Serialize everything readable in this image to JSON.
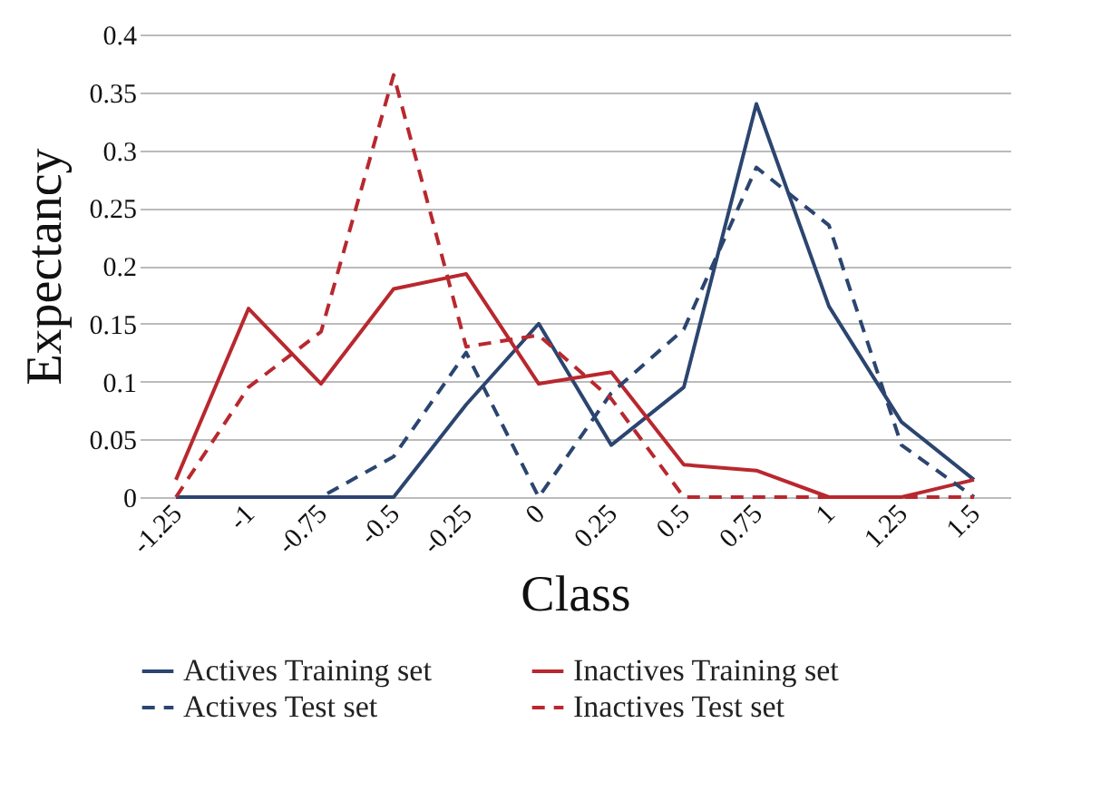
{
  "chart_data": {
    "type": "line",
    "xlabel": "Class",
    "ylabel": "Expectancy",
    "categories": [
      "-1.25",
      "-1",
      "-0.75",
      "-0.5",
      "-0.25",
      "0",
      "0.25",
      "0.5",
      "0.75",
      "1",
      "1.25",
      "1.5"
    ],
    "ylim": [
      0,
      0.4
    ],
    "yticks": [
      0,
      0.05,
      0.1,
      0.15,
      0.2,
      0.25,
      0.3,
      0.35,
      0.4
    ],
    "grid": "y",
    "legend": "bottom",
    "marker": "none",
    "series": [
      {
        "name": "Actives Training set",
        "color": "#2b4570",
        "line_style": "solid",
        "values": [
          0,
          0,
          0,
          0,
          0.08,
          0.15,
          0.045,
          0.095,
          0.34,
          0.165,
          0.065,
          0.015
        ]
      },
      {
        "name": "Inactives Training set",
        "color": "#b8282e",
        "line_style": "solid",
        "values": [
          0.015,
          0.163,
          0.098,
          0.18,
          0.193,
          0.098,
          0.108,
          0.028,
          0.023,
          0,
          0,
          0.015
        ]
      },
      {
        "name": "Actives Test set",
        "color": "#2b4570",
        "line_style": "dashed",
        "values": [
          0,
          0,
          0,
          0.035,
          0.125,
          0,
          0.09,
          0.145,
          0.285,
          0.235,
          0.045,
          0
        ]
      },
      {
        "name": "Inactives Test set",
        "color": "#b8282e",
        "line_style": "dashed",
        "values": [
          0,
          0.095,
          0.143,
          0.365,
          0.13,
          0.14,
          0.085,
          0,
          0,
          0,
          0,
          0
        ]
      }
    ]
  }
}
